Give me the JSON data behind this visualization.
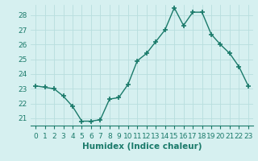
{
  "x": [
    0,
    1,
    2,
    3,
    4,
    5,
    6,
    7,
    8,
    9,
    10,
    11,
    12,
    13,
    14,
    15,
    16,
    17,
    18,
    19,
    20,
    21,
    22,
    23
  ],
  "y": [
    23.2,
    23.1,
    23.0,
    22.5,
    21.8,
    20.8,
    20.8,
    20.9,
    22.3,
    22.4,
    23.3,
    24.9,
    25.4,
    26.2,
    27.0,
    28.5,
    27.3,
    28.2,
    28.2,
    26.7,
    26.0,
    25.4,
    24.5,
    23.2
  ],
  "line_color": "#1a7a6a",
  "marker": "+",
  "marker_size": 4,
  "marker_linewidth": 1.2,
  "bg_color": "#d6f0f0",
  "grid_color": "#b8dede",
  "xlabel": "Humidex (Indice chaleur)",
  "ylabel": "",
  "title": "",
  "xlim": [
    -0.5,
    23.5
  ],
  "ylim": [
    20.5,
    28.7
  ],
  "yticks": [
    21,
    22,
    23,
    24,
    25,
    26,
    27,
    28
  ],
  "xticks": [
    0,
    1,
    2,
    3,
    4,
    5,
    6,
    7,
    8,
    9,
    10,
    11,
    12,
    13,
    14,
    15,
    16,
    17,
    18,
    19,
    20,
    21,
    22,
    23
  ],
  "font_color": "#1a7a6a",
  "tick_label_size": 6.5,
  "xlabel_size": 7.5,
  "line_width": 1.0,
  "spine_color": "#1a7a6a"
}
